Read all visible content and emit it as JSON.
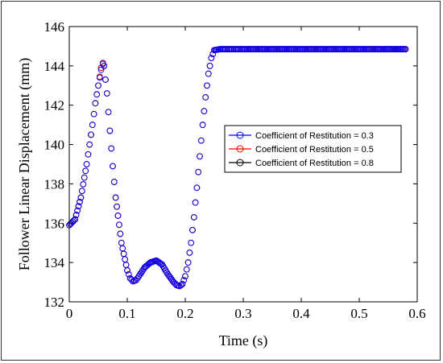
{
  "chart_data": {
    "type": "scatter",
    "xlabel": "Time (s)",
    "ylabel": "Follower Linear Displacement (mm)",
    "xlim": [
      0,
      0.6
    ],
    "ylim": [
      132,
      146
    ],
    "xticks": [
      "0",
      "0.1",
      "0.2",
      "0.3",
      "0.4",
      "0.5",
      "0.6"
    ],
    "yticks": [
      "132",
      "134",
      "136",
      "138",
      "140",
      "142",
      "144",
      "146"
    ],
    "grid": false,
    "legend_position": "middle-right",
    "marker": "open-circle",
    "series": [
      {
        "name": "Coefficient of Restitution = 0.3",
        "color": "#0000ff",
        "x": [
          0.0,
          0.01,
          0.02,
          0.03,
          0.035,
          0.04,
          0.045,
          0.05,
          0.055,
          0.058,
          0.06,
          0.065,
          0.07,
          0.075,
          0.08,
          0.09,
          0.1,
          0.105,
          0.11,
          0.115,
          0.12,
          0.13,
          0.14,
          0.15,
          0.16,
          0.17,
          0.18,
          0.185,
          0.19,
          0.195,
          0.2,
          0.205,
          0.21,
          0.215,
          0.22,
          0.225,
          0.23,
          0.235,
          0.24,
          0.245,
          0.25,
          0.26,
          0.3,
          0.35,
          0.4,
          0.45,
          0.5,
          0.55,
          0.58
        ],
        "y": [
          135.9,
          136.2,
          137.3,
          139.0,
          140.0,
          141.0,
          142.1,
          143.0,
          143.8,
          144.1,
          144.0,
          142.6,
          140.7,
          138.9,
          137.3,
          135.0,
          133.6,
          133.2,
          133.05,
          133.1,
          133.3,
          133.75,
          134.0,
          134.1,
          133.9,
          133.4,
          133.0,
          132.85,
          132.8,
          132.9,
          133.3,
          134.0,
          135.0,
          136.3,
          137.8,
          139.4,
          141.0,
          142.4,
          143.6,
          144.4,
          144.8,
          144.85,
          144.85,
          144.85,
          144.85,
          144.85,
          144.85,
          144.85,
          144.85
        ]
      },
      {
        "name": "Coefficient of Restitution = 0.5",
        "color": "#ff0000",
        "x": [
          0.0,
          0.01,
          0.02,
          0.03,
          0.035,
          0.04,
          0.045,
          0.05,
          0.055,
          0.058,
          0.06,
          0.065,
          0.07,
          0.075,
          0.08,
          0.09,
          0.1,
          0.105,
          0.11,
          0.115,
          0.12,
          0.13,
          0.14,
          0.15,
          0.16,
          0.17,
          0.18,
          0.185,
          0.19,
          0.195,
          0.2,
          0.205,
          0.21,
          0.215,
          0.22,
          0.225,
          0.23,
          0.235,
          0.24,
          0.245,
          0.25,
          0.26,
          0.3,
          0.35,
          0.4,
          0.45,
          0.5,
          0.55,
          0.58
        ],
        "y": [
          135.9,
          136.2,
          137.3,
          139.0,
          140.0,
          141.0,
          142.1,
          143.0,
          143.9,
          144.15,
          144.0,
          142.6,
          140.7,
          138.9,
          137.3,
          135.0,
          133.6,
          133.2,
          133.05,
          133.1,
          133.3,
          133.75,
          134.0,
          134.1,
          133.9,
          133.4,
          133.0,
          132.85,
          132.8,
          132.9,
          133.3,
          134.0,
          135.0,
          136.3,
          137.8,
          139.4,
          141.0,
          142.4,
          143.6,
          144.4,
          144.8,
          144.85,
          144.85,
          144.85,
          144.85,
          144.85,
          144.85,
          144.85,
          144.85
        ]
      },
      {
        "name": "Coefficient of Restitution = 0.8",
        "color": "#000000",
        "x": [
          0.0,
          0.01,
          0.02,
          0.03,
          0.035,
          0.04,
          0.045,
          0.05,
          0.055,
          0.058,
          0.06,
          0.065,
          0.07,
          0.075,
          0.08,
          0.09,
          0.1,
          0.105,
          0.11,
          0.115,
          0.12,
          0.13,
          0.14,
          0.15,
          0.16,
          0.17,
          0.18,
          0.185,
          0.19,
          0.195,
          0.2,
          0.205,
          0.21,
          0.215,
          0.22,
          0.225,
          0.23,
          0.235,
          0.24,
          0.245,
          0.25,
          0.26,
          0.3,
          0.35,
          0.4,
          0.45,
          0.5,
          0.55,
          0.58
        ],
        "y": [
          135.9,
          136.2,
          137.3,
          139.0,
          140.0,
          141.0,
          142.1,
          143.0,
          143.9,
          144.15,
          144.0,
          142.6,
          140.7,
          138.9,
          137.3,
          135.0,
          133.6,
          133.2,
          133.05,
          133.1,
          133.3,
          133.75,
          134.0,
          134.1,
          133.9,
          133.4,
          133.0,
          132.85,
          132.8,
          132.9,
          133.3,
          134.0,
          135.0,
          136.3,
          137.8,
          139.4,
          141.0,
          142.4,
          143.6,
          144.4,
          144.8,
          144.85,
          144.85,
          144.85,
          144.85,
          144.85,
          144.85,
          144.85,
          144.85
        ]
      }
    ]
  }
}
